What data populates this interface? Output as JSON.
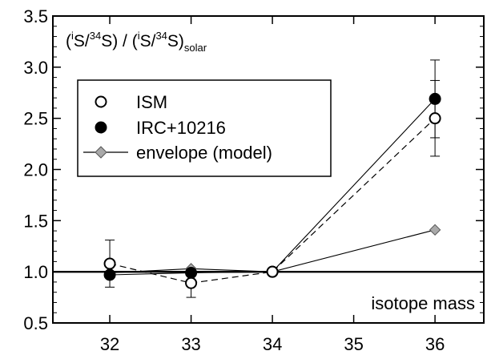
{
  "chart_data": {
    "type": "line",
    "ylabel": {
      "p1": "(",
      "sup1": "i",
      "p2": "S/",
      "sup2": "34",
      "p3": "S) / (",
      "sup3": "i",
      "p4": "S/",
      "sup4": "34",
      "p5": "S)",
      "sub": "solar"
    },
    "xlabel": "isotope mass",
    "xlim": [
      31.3,
      36.6
    ],
    "ylim": [
      0.5,
      3.5
    ],
    "x_ticks": [
      32,
      33,
      34,
      35,
      36
    ],
    "y_ticks": [
      0.5,
      1.0,
      1.5,
      2.0,
      2.5,
      3.0,
      3.5
    ],
    "x_tick_labels": [
      "32",
      "33",
      "34",
      "35",
      "36"
    ],
    "y_tick_labels": [
      "0.5",
      "1.0",
      "1.5",
      "2.0",
      "2.5",
      "3.0",
      "3.5"
    ],
    "reference_line": 1.0,
    "legend_position": "upper-left",
    "series": [
      {
        "name": "ISM",
        "marker": "open-circle",
        "line": "dashed",
        "x": [
          32,
          33,
          34,
          36
        ],
        "y": [
          1.08,
          0.89,
          1.0,
          2.5
        ],
        "err_low": [
          0.85,
          0.75,
          null,
          2.13
        ],
        "err_high": [
          1.31,
          1.01,
          null,
          2.87
        ]
      },
      {
        "name": "IRC+10216",
        "marker": "filled-circle",
        "line": "solid",
        "x": [
          32,
          33,
          34,
          36
        ],
        "y": [
          0.97,
          0.99,
          1.0,
          2.69
        ],
        "err_low": [
          null,
          null,
          null,
          2.31
        ],
        "err_high": [
          null,
          null,
          null,
          3.07
        ]
      },
      {
        "name": "envelope (model)",
        "marker": "diamond",
        "line": "solid",
        "x": [
          32,
          33,
          34,
          36
        ],
        "y": [
          0.99,
          1.03,
          1.0,
          1.41
        ],
        "err_low": [
          null,
          null,
          null,
          null
        ],
        "err_high": [
          null,
          null,
          null,
          null
        ]
      }
    ]
  }
}
